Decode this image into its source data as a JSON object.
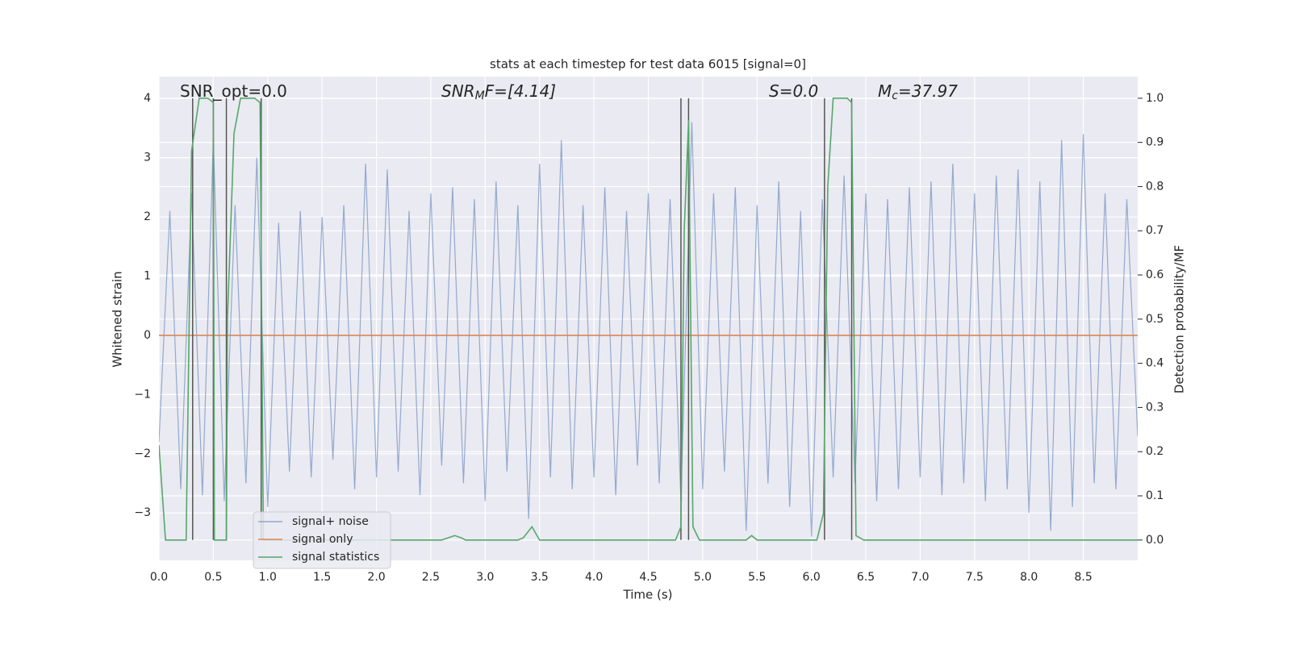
{
  "chart_data": {
    "type": "line",
    "title": "stats at each timestep for test data 6015 [signal=0]",
    "xlabel": "Time (s)",
    "ylabel": "Whitened strain",
    "y2label": "Detection probability/MF",
    "grid": true,
    "background": "#eaeaf2",
    "legend": "lower left",
    "xlim": [
      0,
      9.0
    ],
    "ylim": [
      -3.8,
      4.37
    ],
    "y2lim": [
      -0.046,
      1.049
    ],
    "xticks": [
      {
        "value": 0,
        "label": "0.0"
      },
      {
        "value": 0.5,
        "label": "0.5"
      },
      {
        "value": 1,
        "label": "1.0"
      },
      {
        "value": 1.5,
        "label": "1.5"
      },
      {
        "value": 2,
        "label": "2.0"
      },
      {
        "value": 2.5,
        "label": "2.5"
      },
      {
        "value": 3,
        "label": "3.0"
      },
      {
        "value": 3.5,
        "label": "3.5"
      },
      {
        "value": 4,
        "label": "4.0"
      },
      {
        "value": 4.5,
        "label": "4.5"
      },
      {
        "value": 5,
        "label": "5.0"
      },
      {
        "value": 5.5,
        "label": "5.5"
      },
      {
        "value": 6,
        "label": "6.0"
      },
      {
        "value": 6.5,
        "label": "6.5"
      },
      {
        "value": 7,
        "label": "7.0"
      },
      {
        "value": 7.5,
        "label": "7.5"
      },
      {
        "value": 8,
        "label": "8.0"
      },
      {
        "value": 8.5,
        "label": "8.5"
      }
    ],
    "yticks": [
      {
        "value": -3,
        "label": "−3"
      },
      {
        "value": -2,
        "label": "−2"
      },
      {
        "value": -1,
        "label": "−1"
      },
      0,
      1,
      2,
      3,
      4
    ],
    "y2ticks": [
      {
        "value": 0,
        "label": "0.0"
      },
      {
        "value": 0.1,
        "label": "0.1"
      },
      {
        "value": 0.2,
        "label": "0.2"
      },
      {
        "value": 0.3,
        "label": "0.3"
      },
      {
        "value": 0.4,
        "label": "0.4"
      },
      {
        "value": 0.5,
        "label": "0.5"
      },
      {
        "value": 0.6,
        "label": "0.6"
      },
      {
        "value": 0.7,
        "label": "0.7"
      },
      {
        "value": 0.8,
        "label": "0.8"
      },
      {
        "value": 0.9,
        "label": "0.9"
      },
      {
        "value": 1,
        "label": "1.0"
      }
    ],
    "annotations": [
      {
        "text": "SNR_opt=0.0"
      },
      {
        "main": "SNR",
        "sub": "M",
        "after": "F=[4.14]"
      },
      {
        "main": "S",
        "after": "=0.0"
      },
      {
        "main": "M",
        "sub": "c",
        "after": "=37.97"
      }
    ],
    "event_times": [
      0.31,
      0.5,
      0.62,
      0.94,
      4.8,
      4.87,
      6.12,
      6.37
    ],
    "event_color": "#555555",
    "series": [
      {
        "name": "signal+ noise",
        "color": "#4c72b0",
        "x": [
          0,
          0.1,
          0.2,
          0.3,
          0.4,
          0.5,
          0.6,
          0.7,
          0.8,
          0.9,
          1,
          1.1,
          1.2,
          1.3,
          1.4,
          1.5,
          1.6,
          1.7,
          1.8,
          1.9,
          2,
          2.1,
          2.2,
          2.3,
          2.4,
          2.5,
          2.6,
          2.7,
          2.8,
          2.9,
          3,
          3.1,
          3.2,
          3.3,
          3.4,
          3.5,
          3.6,
          3.7,
          3.8,
          3.9,
          4,
          4.1,
          4.2,
          4.3,
          4.4,
          4.5,
          4.6,
          4.7,
          4.8,
          4.9,
          5,
          5.1,
          5.2,
          5.3,
          5.4,
          5.5,
          5.6,
          5.7,
          5.8,
          5.9,
          6,
          6.1,
          6.2,
          6.3,
          6.4,
          6.5,
          6.6,
          6.7,
          6.8,
          6.9,
          7,
          7.1,
          7.2,
          7.3,
          7.4,
          7.5,
          7.6,
          7.7,
          7.8,
          7.9,
          8,
          8.1,
          8.2,
          8.3,
          8.4,
          8.5,
          8.6,
          8.7,
          8.8,
          8.9,
          9
        ],
        "values": [
          -1.8,
          2.1,
          -2.6,
          2.4,
          -2.7,
          3.3,
          -2.8,
          2.2,
          -2.5,
          3.0,
          -2.9,
          1.9,
          -2.3,
          2.1,
          -2.4,
          2.0,
          -2.1,
          2.2,
          -2.6,
          2.9,
          -2.4,
          2.8,
          -2.3,
          2.1,
          -2.7,
          2.4,
          -2.2,
          2.5,
          -2.5,
          2.3,
          -2.8,
          2.6,
          -2.3,
          2.2,
          -3.1,
          2.9,
          -2.4,
          3.3,
          -2.6,
          2.2,
          -2.4,
          2.5,
          -2.7,
          2.1,
          -2.2,
          2.4,
          -2.5,
          2.3,
          -2.8,
          3.6,
          -2.6,
          2.4,
          -2.3,
          2.5,
          -3.3,
          2.2,
          -2.5,
          2.6,
          -2.9,
          2.1,
          -3.4,
          2.3,
          -2.4,
          2.7,
          -2.5,
          2.4,
          -2.8,
          2.3,
          -2.6,
          2.5,
          -2.4,
          2.6,
          -2.7,
          2.9,
          -2.5,
          2.4,
          -2.8,
          2.7,
          -2.6,
          2.8,
          -3.0,
          2.6,
          -3.3,
          3.3,
          -2.9,
          3.4,
          -2.5,
          2.4,
          -2.6,
          2.3,
          -1.7
        ]
      },
      {
        "name": "signal only",
        "color": "#dd8452",
        "x": [
          0,
          9
        ],
        "values": [
          0,
          0
        ]
      },
      {
        "name": "signal statistics",
        "color": "#55a868",
        "axis": "y2",
        "x": [
          0,
          0.06,
          0.25,
          0.3,
          0.37,
          0.45,
          0.5,
          0.51,
          0.55,
          0.62,
          0.63,
          0.69,
          0.75,
          0.88,
          0.93,
          0.96,
          2.6,
          2.72,
          2.78,
          2.82,
          3.3,
          3.35,
          3.43,
          3.5,
          4.75,
          4.8,
          4.83,
          4.87,
          4.91,
          4.97,
          5.4,
          5.45,
          5.5,
          6.05,
          6.11,
          6.15,
          6.2,
          6.33,
          6.37,
          6.41,
          6.48,
          9
        ],
        "values": [
          0.215,
          0,
          0,
          0.88,
          1,
          1,
          0.99,
          0,
          0,
          0,
          0.5,
          0.92,
          1,
          1,
          0.99,
          0,
          0,
          0.01,
          0.005,
          0,
          0,
          0.005,
          0.03,
          0,
          0,
          0.03,
          0.7,
          0.95,
          0.03,
          0,
          0,
          0.01,
          0,
          0,
          0.06,
          0.8,
          1,
          1,
          0.99,
          0.01,
          0,
          0
        ]
      }
    ]
  }
}
